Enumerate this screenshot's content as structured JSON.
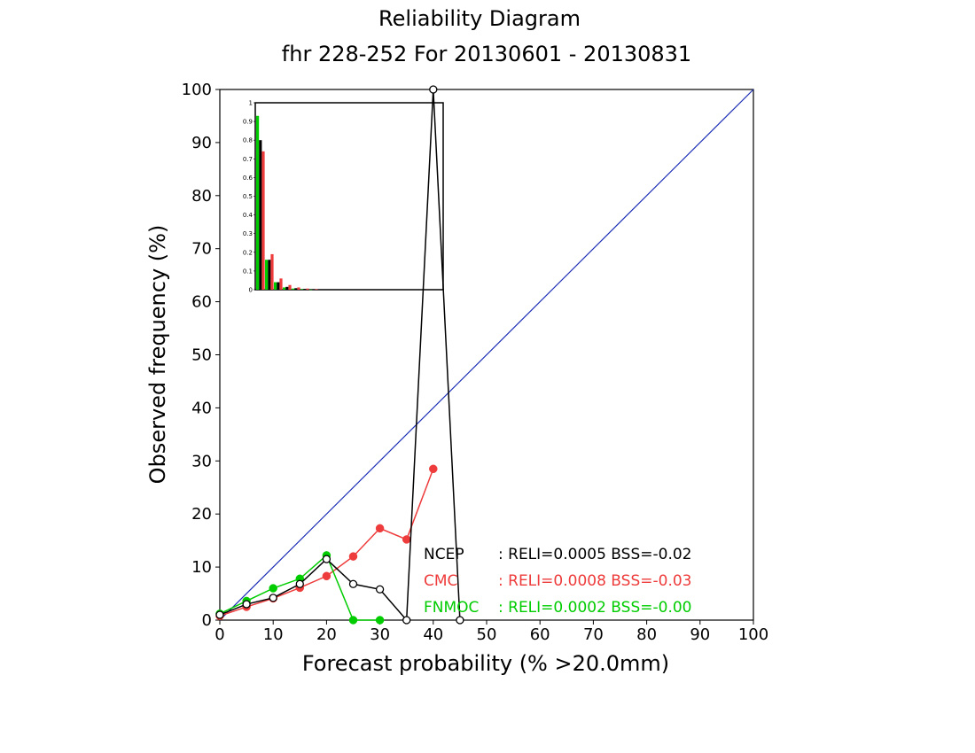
{
  "chart_data": {
    "type": "line",
    "title": "Reliability Diagram",
    "subtitle": "fhr 228-252 For 20130601 - 20130831",
    "xlabel": "Forecast probability (% >20.0mm)",
    "ylabel": "Observed frequency (%)",
    "xlim": [
      0,
      100
    ],
    "ylim": [
      0,
      100
    ],
    "x_ticks": [
      "0",
      "10",
      "20",
      "30",
      "40",
      "50",
      "60",
      "70",
      "80",
      "90",
      "100"
    ],
    "y_ticks": [
      "0",
      "10",
      "20",
      "30",
      "40",
      "50",
      "60",
      "70",
      "80",
      "90",
      "100"
    ],
    "diagonal_color": "#1a2cb4",
    "series": [
      {
        "name": "NCEP",
        "color": "#000000",
        "marker": "open-circle",
        "x": [
          0,
          5,
          10,
          15,
          20,
          25,
          30,
          35,
          40,
          45
        ],
        "y": [
          1.0,
          3.0,
          4.2,
          6.8,
          11.5,
          6.8,
          5.8,
          0,
          100,
          0
        ],
        "stats": ": RELI=0.0005  BSS=-0.02"
      },
      {
        "name": "CMC",
        "color": "#ee3b3b",
        "marker": "filled-circle",
        "x": [
          0,
          5,
          10,
          15,
          20,
          25,
          30,
          35,
          40
        ],
        "y": [
          0.8,
          2.5,
          4.1,
          6.1,
          8.3,
          12.0,
          17.3,
          15.2,
          28.5
        ],
        "stats": ": RELI=0.0008  BSS=-0.03"
      },
      {
        "name": "FNMOC",
        "color": "#00cc00",
        "marker": "filled-circle",
        "x": [
          0,
          5,
          10,
          15,
          20,
          25,
          30
        ],
        "y": [
          1.2,
          3.6,
          6.0,
          7.8,
          12.2,
          0,
          0
        ],
        "stats": ": RELI=0.0002  BSS=-0.00"
      }
    ],
    "inset": {
      "type": "bar",
      "description_ticks": [
        "0",
        "0.1",
        "0.2",
        "0.3",
        "0.4",
        "0.5",
        "0.6",
        "0.7",
        "0.8",
        "0.9",
        "1"
      ],
      "ylim": [
        0,
        1
      ],
      "bins": [
        0,
        1,
        2,
        3,
        4,
        5,
        6
      ],
      "series_values": {
        "NCEP": [
          0.8,
          0.16,
          0.04,
          0.015,
          0.008,
          0.004,
          0.002
        ],
        "CMC": [
          0.74,
          0.19,
          0.06,
          0.025,
          0.012,
          0.006,
          0.003
        ],
        "FNMOC": [
          0.93,
          0.16,
          0.04,
          0.012,
          0.006,
          0.003,
          0.001
        ]
      }
    }
  }
}
